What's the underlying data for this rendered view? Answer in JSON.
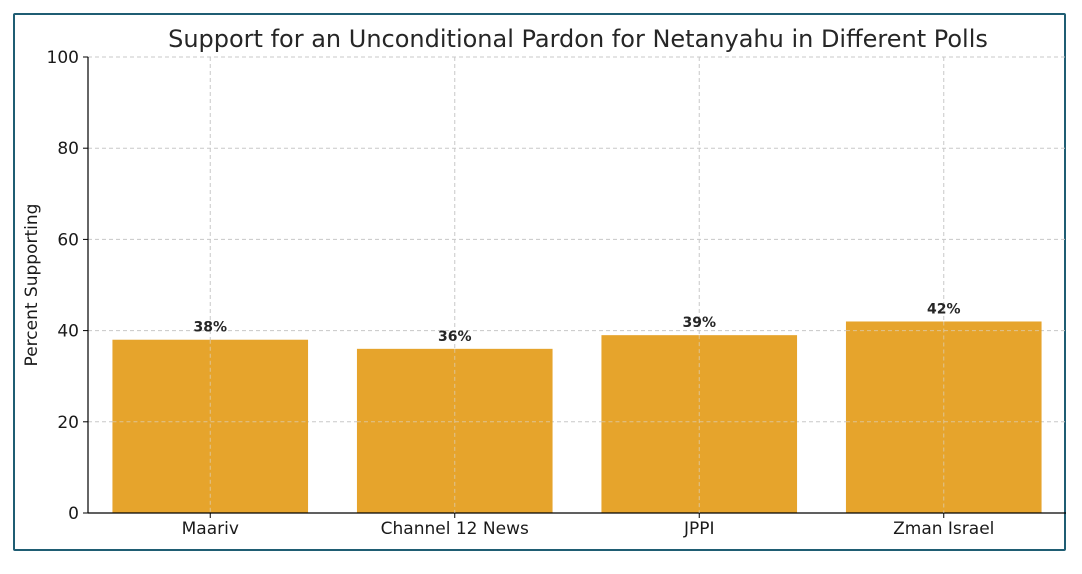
{
  "chart_data": {
    "type": "bar",
    "title": "Support for an Unconditional Pardon for Netanyahu in Different Polls",
    "xlabel": "",
    "ylabel": "Percent Supporting",
    "categories": [
      "Maariv",
      "Channel 12 News",
      "JPPI",
      "Zman Israel"
    ],
    "values": [
      38,
      36,
      39,
      42
    ],
    "data_labels": [
      "38%",
      "36%",
      "39%",
      "42%"
    ],
    "ylim": [
      0,
      100
    ],
    "yticks": [
      0,
      20,
      40,
      60,
      80,
      100
    ],
    "grid": true,
    "legend": "none",
    "bar_color": "#e5a125"
  },
  "colors": {
    "frame_border": "#1f5d73",
    "grid": "#c8c8c8",
    "axis": "#000000"
  }
}
